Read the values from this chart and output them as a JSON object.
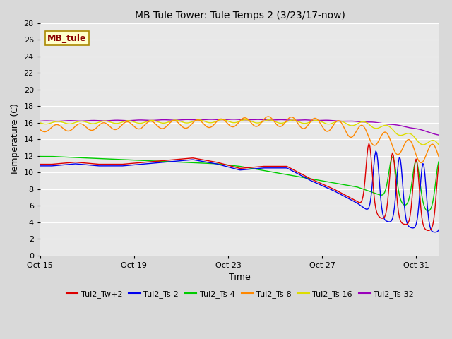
{
  "title": "MB Tule Tower: Tule Temps 2 (3/23/17-now)",
  "xlabel": "Time",
  "ylabel": "Temperature (C)",
  "ylim": [
    0,
    28
  ],
  "yticks": [
    0,
    2,
    4,
    6,
    8,
    10,
    12,
    14,
    16,
    18,
    20,
    22,
    24,
    26,
    28
  ],
  "xtick_labels": [
    "Oct 15",
    "Oct 19",
    "Oct 23",
    "Oct 27",
    "Oct 31"
  ],
  "xtick_positions": [
    0,
    4,
    8,
    12,
    16
  ],
  "fig_facecolor": "#d9d9d9",
  "ax_facecolor": "#e8e8e8",
  "grid_color": "#ffffff",
  "legend_label": "MB_tule",
  "series_colors": {
    "Tul2_Tw+2": "#dd0000",
    "Tul2_Ts-2": "#0000ee",
    "Tul2_Ts-4": "#00cc00",
    "Tul2_Ts-8": "#ff8800",
    "Tul2_Ts-16": "#dddd00",
    "Tul2_Ts-32": "#9900bb"
  },
  "series_lw": 1.0,
  "title_fontsize": 10,
  "axis_fontsize": 9,
  "tick_fontsize": 8
}
